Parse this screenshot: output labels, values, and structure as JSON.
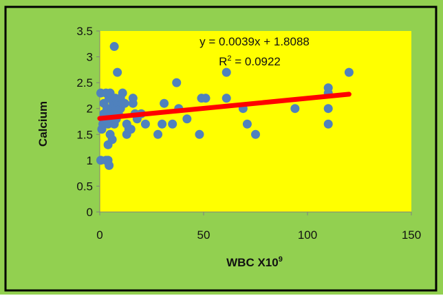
{
  "chart_data": {
    "type": "scatter",
    "title": "",
    "xlabel": "WBC X10",
    "xlabel_superscript": "9",
    "ylabel": "Calcium",
    "xlim": [
      0,
      150
    ],
    "ylim": [
      0,
      3.5
    ],
    "x_ticks": [
      0,
      50,
      100,
      150
    ],
    "x_tick_labels": [
      "0",
      "50",
      "100",
      "150"
    ],
    "y_ticks": [
      0,
      0.5,
      1,
      1.5,
      2,
      2.5,
      3,
      3.5
    ],
    "y_tick_labels": [
      "0",
      "0.5",
      "1",
      "1.5",
      "2",
      "2.5",
      "3",
      "3.5"
    ],
    "grid": false,
    "legend": "none",
    "colors": {
      "outer_background": "#92D050",
      "plot_background": "#FFFF00",
      "border": "#000000",
      "points": "#4F81BD",
      "trendline": "#FF0000"
    },
    "series": [
      {
        "points": [
          [
            0.5,
            1.0
          ],
          [
            0.5,
            2.3
          ],
          [
            1,
            1.6
          ],
          [
            1.5,
            1.7
          ],
          [
            2,
            1.9
          ],
          [
            2,
            2.1
          ],
          [
            3,
            1.0
          ],
          [
            3,
            1.8
          ],
          [
            3,
            2.3
          ],
          [
            3.5,
            2.0
          ],
          [
            4,
            1.0
          ],
          [
            4,
            1.3
          ],
          [
            4,
            1.7
          ],
          [
            4.5,
            0.9
          ],
          [
            4.5,
            2.2
          ],
          [
            5,
            1.5
          ],
          [
            5,
            1.8
          ],
          [
            5,
            2.3
          ],
          [
            5.5,
            1.9
          ],
          [
            6,
            1.4
          ],
          [
            6,
            2.0
          ],
          [
            6.5,
            2.1
          ],
          [
            7,
            1.7
          ],
          [
            7,
            3.2
          ],
          [
            7.5,
            2.2
          ],
          [
            8,
            1.8
          ],
          [
            8,
            2.0
          ],
          [
            8.5,
            2.7
          ],
          [
            9,
            1.9
          ],
          [
            9,
            2.1
          ],
          [
            10,
            2.0
          ],
          [
            10,
            2.2
          ],
          [
            11,
            2.1
          ],
          [
            11,
            2.3
          ],
          [
            12,
            2.1
          ],
          [
            13,
            1.5
          ],
          [
            13,
            1.7
          ],
          [
            14,
            1.6
          ],
          [
            15,
            1.6
          ],
          [
            16,
            2.1
          ],
          [
            16,
            2.2
          ],
          [
            17,
            1.9
          ],
          [
            18,
            1.8
          ],
          [
            20,
            1.9
          ],
          [
            22,
            1.7
          ],
          [
            28,
            1.5
          ],
          [
            30,
            1.7
          ],
          [
            31,
            2.1
          ],
          [
            35,
            1.7
          ],
          [
            37,
            2.5
          ],
          [
            38,
            2.0
          ],
          [
            42,
            1.8
          ],
          [
            48,
            1.5
          ],
          [
            49,
            2.2
          ],
          [
            51,
            2.2
          ],
          [
            61,
            2.7
          ],
          [
            61,
            2.2
          ],
          [
            69,
            2.0
          ],
          [
            71,
            1.7
          ],
          [
            75,
            1.5
          ],
          [
            94,
            2.0
          ],
          [
            110,
            2.4
          ],
          [
            110,
            2.3
          ],
          [
            110,
            2.0
          ],
          [
            110,
            1.7
          ],
          [
            120,
            2.7
          ]
        ]
      }
    ],
    "trendline": {
      "slope": 0.0039,
      "intercept": 1.8088,
      "x_range": [
        0,
        120
      ],
      "equation": "y = 0.0039x + 1.8088",
      "r_squared_prefix": "R",
      "r_squared_sup": "2",
      "r_squared_value": " = 0.0922"
    }
  }
}
